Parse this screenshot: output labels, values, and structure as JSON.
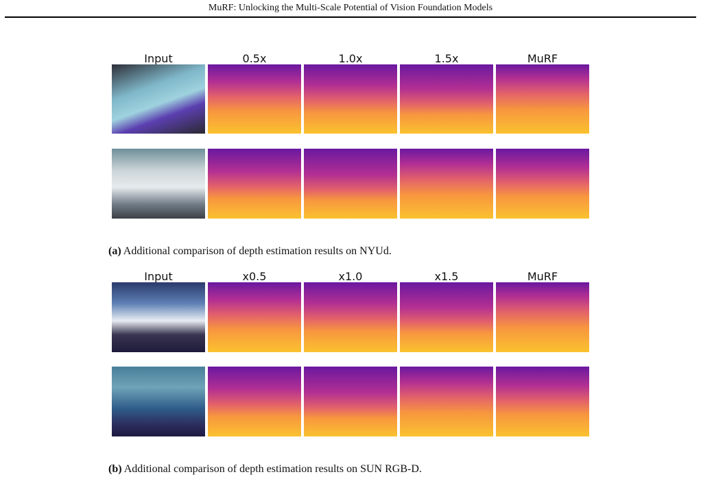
{
  "header": {
    "title": "MuRF: Unlocking the Multi-Scale Potential of Vision Foundation Models"
  },
  "panels": [
    {
      "columns": [
        "Input",
        "0.5x",
        "1.0x",
        "1.5x",
        "MuRF"
      ],
      "caption": {
        "label": "(a)",
        "text": "Additional comparison of depth estimation results on NYUd."
      }
    },
    {
      "columns": [
        "Input",
        "x0.5",
        "x1.0",
        "x1.5",
        "MuRF"
      ],
      "caption": {
        "label": "(b)",
        "text": "Additional comparison of depth estimation results on SUN RGB-D."
      }
    }
  ]
}
